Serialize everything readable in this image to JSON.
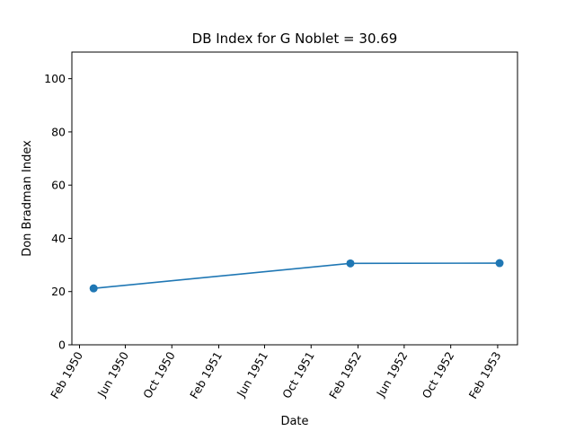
{
  "chart_data": {
    "type": "line",
    "title": "DB Index for G Noblet = 30.69",
    "xlabel": "Date",
    "ylabel": "Don Bradman Index",
    "ylim": [
      0,
      110
    ],
    "yticks": [
      0,
      20,
      40,
      60,
      80,
      100
    ],
    "xlim": [
      "1950-01-12",
      "1953-03-25"
    ],
    "xticks": [
      {
        "date": "1950-02-01",
        "label": "Feb 1950"
      },
      {
        "date": "1950-06-01",
        "label": "Jun 1950"
      },
      {
        "date": "1950-10-01",
        "label": "Oct 1950"
      },
      {
        "date": "1951-02-01",
        "label": "Feb 1951"
      },
      {
        "date": "1951-06-01",
        "label": "Jun 1951"
      },
      {
        "date": "1951-10-01",
        "label": "Oct 1951"
      },
      {
        "date": "1952-02-01",
        "label": "Feb 1952"
      },
      {
        "date": "1952-06-01",
        "label": "Jun 1952"
      },
      {
        "date": "1952-10-01",
        "label": "Oct 1952"
      },
      {
        "date": "1953-02-01",
        "label": "Feb 1953"
      }
    ],
    "series": [
      {
        "name": "G Noblet",
        "color": "#1f77b4",
        "x": [
          "1950-03-10",
          "1952-01-12",
          "1953-02-06"
        ],
        "y": [
          21.2,
          30.6,
          30.69
        ]
      }
    ],
    "grid": false,
    "legend": "none"
  }
}
